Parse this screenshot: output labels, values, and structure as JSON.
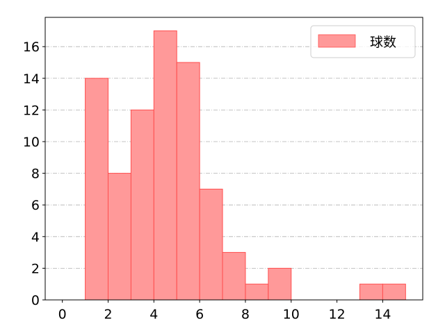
{
  "chart_data": {
    "type": "bar",
    "subtype": "histogram",
    "bins": [
      [
        1,
        2
      ],
      [
        2,
        3
      ],
      [
        3,
        4
      ],
      [
        4,
        5
      ],
      [
        5,
        6
      ],
      [
        6,
        7
      ],
      [
        7,
        8
      ],
      [
        8,
        9
      ],
      [
        9,
        10
      ],
      [
        13,
        14
      ],
      [
        14,
        15
      ]
    ],
    "values": [
      14,
      8,
      12,
      17,
      15,
      7,
      3,
      1,
      2,
      1,
      1
    ],
    "series": [
      {
        "name": "球数",
        "color": "#ff9999",
        "edge_color": "#ff4d4d"
      }
    ],
    "xlim": [
      -0.75,
      15.75
    ],
    "ylim": [
      0,
      17.85
    ],
    "xticks": [
      0,
      2,
      4,
      6,
      8,
      10,
      12,
      14
    ],
    "yticks": [
      0,
      2,
      4,
      6,
      8,
      10,
      12,
      14,
      16
    ],
    "grid": {
      "axis": "y",
      "style": "dash-dot",
      "color": "#b0b0b0"
    },
    "legend": {
      "position": "top-right",
      "entries": [
        "球数"
      ]
    },
    "title": "",
    "xlabel": "",
    "ylabel": ""
  }
}
